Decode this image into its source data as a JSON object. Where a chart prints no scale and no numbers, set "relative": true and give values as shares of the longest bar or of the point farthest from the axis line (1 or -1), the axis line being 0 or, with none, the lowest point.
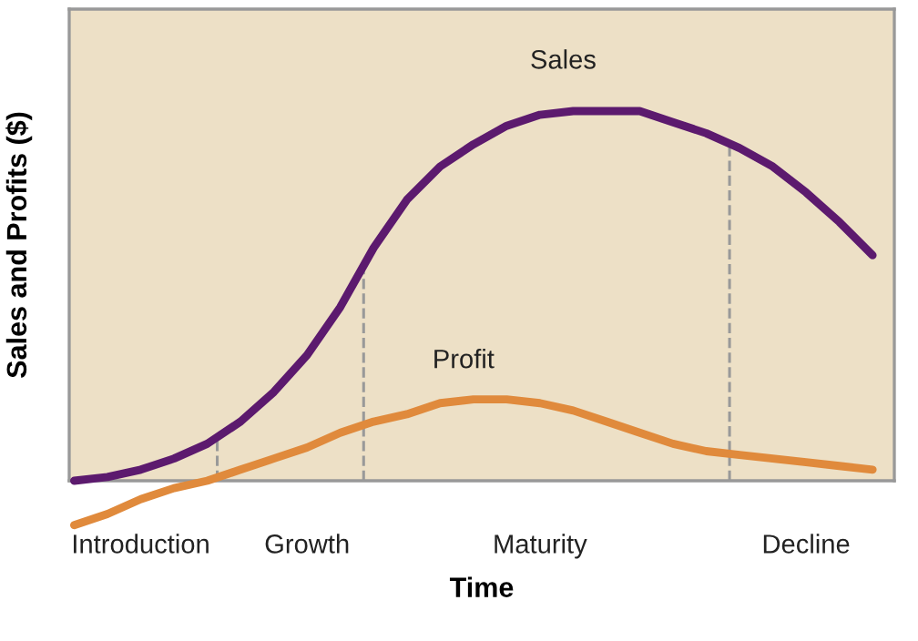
{
  "chart_data": {
    "type": "line",
    "relative": true,
    "xlabel": "Time",
    "ylabel": "Sales and Profits ($)",
    "categories": [
      null,
      null,
      "Introduction",
      null,
      null,
      null,
      null,
      "Growth",
      null,
      null,
      null,
      null,
      null,
      null,
      "Maturity",
      null,
      null,
      null,
      null,
      null,
      null,
      null,
      "Decline",
      null,
      null
    ],
    "series": [
      {
        "name": "Sales",
        "color": "#5c1a6e",
        "values": [
          0.0,
          0.01,
          0.03,
          0.06,
          0.1,
          0.16,
          0.24,
          0.34,
          0.47,
          0.63,
          0.76,
          0.85,
          0.91,
          0.96,
          0.99,
          1.0,
          1.0,
          1.0,
          0.97,
          0.94,
          0.9,
          0.85,
          0.78,
          0.7,
          0.61
        ]
      },
      {
        "name": "Profit",
        "color": "#e08a3c",
        "values": [
          -0.12,
          -0.09,
          -0.05,
          -0.02,
          0.0,
          0.03,
          0.06,
          0.09,
          0.13,
          0.16,
          0.18,
          0.21,
          0.22,
          0.22,
          0.21,
          0.19,
          0.16,
          0.13,
          0.1,
          0.08,
          0.07,
          0.06,
          0.05,
          0.04,
          0.03
        ]
      }
    ],
    "grid": false,
    "legend": false,
    "marker": "none",
    "line_style": "solid"
  }
}
